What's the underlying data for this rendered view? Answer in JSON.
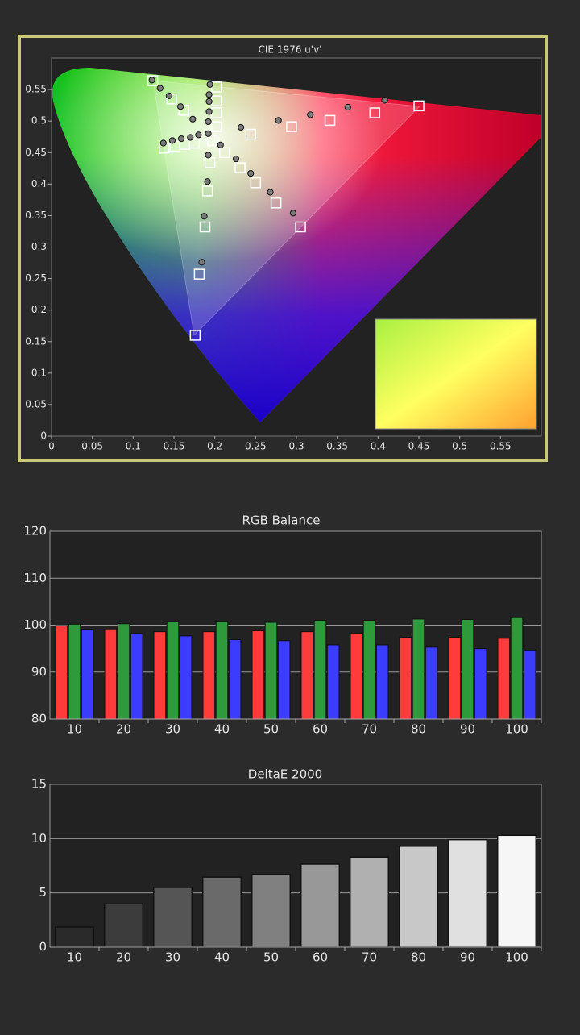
{
  "chart_data": [
    {
      "type": "scatter",
      "title": "CIE 1976 u'v'",
      "xlim": [
        0,
        0.6
      ],
      "ylim": [
        0,
        0.6
      ],
      "xticks": [
        0,
        0.05,
        0.1,
        0.15,
        0.2,
        0.25,
        0.3,
        0.35,
        0.4,
        0.45,
        0.5,
        0.55
      ],
      "yticks": [
        0,
        0.05,
        0.1,
        0.15,
        0.2,
        0.25,
        0.3,
        0.35,
        0.4,
        0.45,
        0.5,
        0.55
      ],
      "series": [
        {
          "marker": "square",
          "color": "#ffffff",
          "x": [
            0.197,
            0.244,
            0.294,
            0.341,
            0.396,
            0.45,
            0.124,
            0.147,
            0.162,
            0.194,
            0.191,
            0.188,
            0.181,
            0.176,
            0.202,
            0.202,
            0.202,
            0.202,
            0.138,
            0.151,
            0.163,
            0.175,
            0.212,
            0.231,
            0.25,
            0.275,
            0.305
          ],
          "y": [
            0.469,
            0.479,
            0.491,
            0.501,
            0.513,
            0.524,
            0.564,
            0.535,
            0.517,
            0.434,
            0.389,
            0.332,
            0.257,
            0.16,
            0.554,
            0.532,
            0.513,
            0.491,
            0.457,
            0.46,
            0.463,
            0.465,
            0.45,
            0.426,
            0.402,
            0.37,
            0.332
          ]
        },
        {
          "marker": "circle",
          "color": "#7a7a7a",
          "x": [
            0.123,
            0.133,
            0.144,
            0.158,
            0.173,
            0.194,
            0.193,
            0.193,
            0.193,
            0.192,
            0.192,
            0.232,
            0.278,
            0.317,
            0.363,
            0.408,
            0.192,
            0.191,
            0.187,
            0.184,
            0.137,
            0.148,
            0.159,
            0.17,
            0.18,
            0.207,
            0.226,
            0.244,
            0.268,
            0.296
          ],
          "y": [
            0.565,
            0.552,
            0.54,
            0.523,
            0.503,
            0.558,
            0.542,
            0.531,
            0.515,
            0.499,
            0.48,
            0.49,
            0.501,
            0.51,
            0.522,
            0.533,
            0.446,
            0.404,
            0.349,
            0.276,
            0.465,
            0.469,
            0.472,
            0.474,
            0.478,
            0.462,
            0.44,
            0.417,
            0.387,
            0.354
          ]
        }
      ]
    },
    {
      "type": "bar",
      "title": "RGB Balance",
      "categories": [
        "10",
        "20",
        "30",
        "40",
        "50",
        "60",
        "70",
        "80",
        "90",
        "100"
      ],
      "ylim": [
        80,
        120
      ],
      "yticks": [
        80,
        90,
        100,
        110,
        120
      ],
      "grid": true,
      "series": [
        {
          "color": "#ff3b3b",
          "values": [
            99.9,
            99.2,
            98.6,
            98.6,
            98.8,
            98.6,
            98.3,
            97.4,
            97.4,
            97.2
          ]
        },
        {
          "color": "#2f9a3c",
          "values": [
            100.2,
            100.3,
            100.7,
            100.7,
            100.6,
            101.0,
            101.0,
            101.3,
            101.2,
            101.6
          ]
        },
        {
          "color": "#3c3cff",
          "values": [
            99.1,
            98.2,
            97.7,
            96.9,
            96.7,
            95.8,
            95.8,
            95.3,
            95.0,
            94.7
          ]
        }
      ]
    },
    {
      "type": "bar",
      "title": "DeltaE 2000",
      "categories": [
        "10",
        "20",
        "30",
        "40",
        "50",
        "60",
        "70",
        "80",
        "90",
        "100"
      ],
      "ylim": [
        0,
        15
      ],
      "yticks": [
        0,
        5,
        10,
        15
      ],
      "grid": true,
      "colors": [
        "#2a2a2a",
        "#3c3c3c",
        "#555555",
        "#6a6a6a",
        "#808080",
        "#989898",
        "#b0b0b0",
        "#c8c8c8",
        "#e0e0e0",
        "#f6f6f6"
      ],
      "values": [
        1.86,
        4.0,
        5.5,
        6.45,
        6.7,
        7.65,
        8.3,
        9.3,
        9.9,
        10.3
      ]
    }
  ]
}
